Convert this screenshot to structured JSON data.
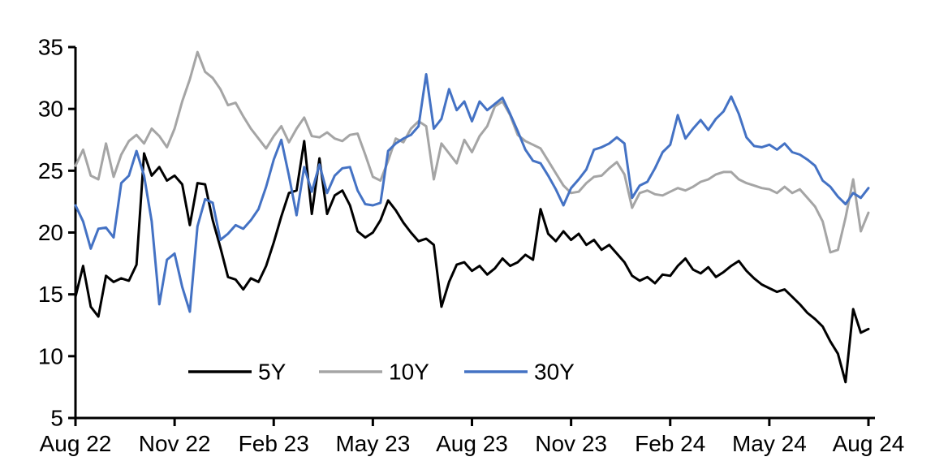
{
  "chart_data": {
    "type": "line",
    "title": "",
    "xlabel": "",
    "ylabel": "",
    "grid": false,
    "ylim": [
      5,
      35
    ],
    "y_ticks": [
      5,
      10,
      15,
      20,
      25,
      30,
      35
    ],
    "x_tick_labels": [
      "Aug 22",
      "Nov 22",
      "Feb 23",
      "May 23",
      "Aug 23",
      "Nov 23",
      "Feb 24",
      "May 24",
      "Aug 24"
    ],
    "x_unit": "weeks from Aug 2022 (weekly samples, 0-104)",
    "legend_position": "inside-bottom-center",
    "series": [
      {
        "name": "5Y",
        "color": "#000000",
        "values": [
          14.8,
          17.3,
          14.0,
          13.2,
          16.5,
          16.0,
          16.3,
          16.1,
          17.4,
          26.4,
          24.6,
          25.3,
          24.2,
          24.6,
          23.9,
          20.6,
          24.0,
          23.9,
          21.0,
          18.8,
          16.4,
          16.2,
          15.4,
          16.3,
          16.0,
          17.3,
          19.2,
          21.3,
          23.2,
          23.4,
          27.4,
          21.5,
          26.0,
          21.5,
          23.0,
          23.4,
          22.2,
          20.1,
          19.6,
          20.0,
          21.0,
          22.6,
          21.8,
          20.8,
          20.0,
          19.3,
          19.5,
          19.0,
          14.0,
          16.0,
          17.4,
          17.6,
          16.9,
          17.3,
          16.6,
          17.1,
          17.9,
          17.3,
          17.6,
          18.2,
          17.8,
          21.9,
          19.9,
          19.3,
          20.1,
          19.4,
          19.9,
          19.0,
          19.4,
          18.6,
          19.0,
          18.3,
          17.6,
          16.5,
          16.1,
          16.4,
          15.9,
          16.6,
          16.5,
          17.3,
          17.9,
          17.0,
          16.7,
          17.2,
          16.4,
          16.8,
          17.3,
          17.7,
          16.9,
          16.3,
          15.8,
          15.5,
          15.2,
          15.4,
          14.8,
          14.2,
          13.5,
          13.0,
          12.4,
          11.2,
          10.2,
          7.9,
          13.8,
          11.9,
          12.2
        ]
      },
      {
        "name": "10Y",
        "color": "#A5A5A5",
        "values": [
          25.4,
          26.7,
          24.6,
          24.3,
          27.2,
          24.5,
          26.3,
          27.4,
          27.9,
          27.2,
          28.4,
          27.8,
          26.9,
          28.4,
          30.6,
          32.4,
          34.6,
          33.0,
          32.5,
          31.6,
          30.3,
          30.5,
          29.4,
          28.4,
          27.6,
          26.8,
          27.8,
          28.6,
          27.3,
          28.4,
          29.3,
          27.8,
          27.7,
          28.1,
          27.6,
          27.4,
          27.9,
          28.0,
          26.3,
          24.5,
          24.2,
          25.8,
          27.6,
          27.3,
          28.4,
          29.0,
          28.6,
          24.3,
          27.2,
          26.4,
          25.6,
          27.5,
          26.5,
          27.8,
          28.6,
          30.2,
          30.6,
          29.5,
          27.9,
          27.4,
          27.1,
          26.8,
          25.8,
          24.8,
          23.8,
          23.2,
          23.3,
          24.0,
          24.5,
          24.6,
          25.2,
          25.7,
          24.7,
          22.0,
          23.2,
          23.4,
          23.1,
          23.0,
          23.3,
          23.6,
          23.4,
          23.7,
          24.1,
          24.3,
          24.7,
          24.9,
          24.9,
          24.3,
          24.0,
          23.8,
          23.6,
          23.5,
          23.2,
          23.7,
          23.2,
          23.5,
          22.8,
          22.1,
          20.9,
          18.4,
          18.6,
          21.2,
          24.3,
          20.1,
          21.6
        ]
      },
      {
        "name": "30Y",
        "color": "#4472C4",
        "values": [
          22.2,
          20.9,
          18.7,
          20.3,
          20.4,
          19.6,
          24.0,
          24.6,
          26.6,
          24.6,
          20.9,
          14.2,
          17.8,
          18.3,
          15.6,
          13.6,
          20.5,
          22.7,
          22.4,
          19.4,
          19.9,
          20.6,
          20.3,
          21.0,
          21.9,
          23.7,
          25.9,
          27.5,
          24.6,
          21.4,
          25.3,
          23.3,
          25.5,
          23.2,
          24.6,
          25.2,
          25.3,
          23.4,
          22.3,
          22.2,
          22.4,
          26.6,
          27.2,
          27.6,
          27.9,
          28.6,
          32.8,
          28.4,
          29.2,
          31.6,
          29.9,
          30.6,
          29.0,
          30.6,
          29.9,
          30.4,
          30.9,
          29.6,
          28.2,
          26.7,
          25.8,
          25.6,
          24.6,
          23.5,
          22.2,
          23.6,
          24.3,
          25.1,
          26.7,
          26.9,
          27.2,
          27.7,
          27.2,
          22.8,
          23.8,
          24.1,
          25.2,
          26.5,
          27.1,
          29.5,
          27.6,
          28.4,
          29.1,
          28.3,
          29.2,
          29.8,
          31.0,
          29.6,
          27.7,
          27.0,
          26.9,
          27.1,
          26.7,
          27.2,
          26.5,
          26.3,
          25.9,
          25.4,
          24.2,
          23.7,
          22.9,
          22.3,
          23.2,
          22.8,
          23.6
        ]
      }
    ]
  }
}
